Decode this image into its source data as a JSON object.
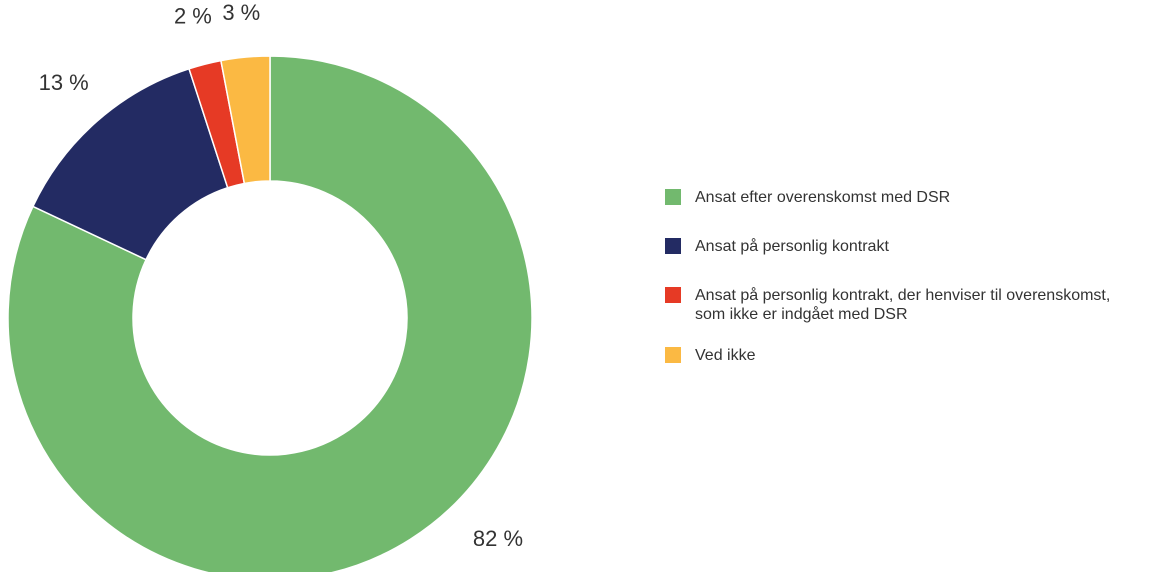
{
  "chart_data": {
    "type": "pie",
    "title": "",
    "categories": [
      "Ansat efter overenskomst med DSR",
      "Ansat på personlig kontrakt",
      "Ansat på personlig kontrakt, der henviser til overenskomst, som ikke er indgået med DSR",
      "Ved ikke"
    ],
    "values": [
      82,
      13,
      2,
      3
    ],
    "value_labels": [
      "82 %",
      "13 %",
      "2 %",
      "3 %"
    ],
    "colors": [
      "#72b96e",
      "#232b63",
      "#e63a25",
      "#fbb943"
    ],
    "donut": true,
    "legend_placement": "right",
    "legend_lines": [
      [
        "Ansat efter overenskomst med DSR"
      ],
      [
        "Ansat på personlig kontrakt"
      ],
      [
        "Ansat på personlig kontrakt, der henviser til overenskomst,",
        "som ikke er indgået med DSR"
      ],
      [
        "Ved ikke"
      ]
    ]
  }
}
